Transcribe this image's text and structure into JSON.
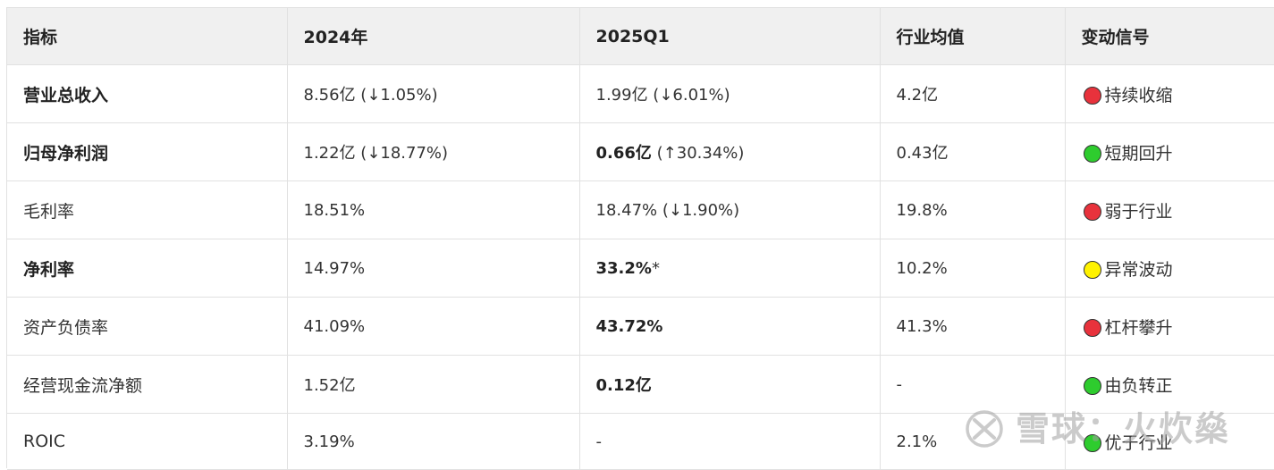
{
  "colors": {
    "header_bg": "#f0f0f0",
    "border": "#e1e1e1",
    "red": "#e8323c",
    "green": "#2ecc2e",
    "yellow": "#fff200"
  },
  "table": {
    "headers": [
      "指标",
      "2024年",
      "2025Q1",
      "行业均值",
      "变动信号"
    ],
    "rows": [
      {
        "metric": "营业总收入",
        "metric_bold": true,
        "y2024": "8.56亿 (↓1.05%)",
        "q1_main": "1.99亿",
        "q1_extra": " (↓6.01%)",
        "q1_bold": false,
        "industry": "4.2亿",
        "signal_color": "red",
        "signal": "持续收缩"
      },
      {
        "metric": "归母净利润",
        "metric_bold": true,
        "y2024": "1.22亿 (↓18.77%)",
        "q1_main": "0.66亿",
        "q1_extra": " (↑30.34%)",
        "q1_bold": true,
        "industry": "0.43亿",
        "signal_color": "green",
        "signal": "短期回升"
      },
      {
        "metric": "毛利率",
        "metric_bold": false,
        "y2024": "18.51%",
        "q1_main": "18.47%",
        "q1_extra": " (↓1.90%)",
        "q1_bold": false,
        "industry": "19.8%",
        "signal_color": "red",
        "signal": "弱于行业"
      },
      {
        "metric": "净利率",
        "metric_bold": true,
        "y2024": "14.97%",
        "q1_main": "33.2%",
        "q1_extra": "*",
        "q1_bold": true,
        "industry": "10.2%",
        "signal_color": "yellow",
        "signal": "异常波动"
      },
      {
        "metric": "资产负债率",
        "metric_bold": false,
        "y2024": "41.09%",
        "q1_main": "43.72%",
        "q1_extra": "",
        "q1_bold": true,
        "industry": "41.3%",
        "signal_color": "red",
        "signal": "杠杆攀升"
      },
      {
        "metric": "经营现金流净额",
        "metric_bold": false,
        "y2024": "1.52亿",
        "q1_main": "0.12亿",
        "q1_extra": "",
        "q1_bold": true,
        "industry": "-",
        "signal_color": "green",
        "signal": "由负转正"
      },
      {
        "metric": "ROIC",
        "metric_bold": false,
        "y2024": "3.19%",
        "q1_main": "-",
        "q1_extra": "",
        "q1_bold": false,
        "industry": "2.1%",
        "signal_color": "green",
        "signal": "优于行业"
      }
    ]
  },
  "watermark": {
    "icon": "xueqiu-logo-icon",
    "text": "雪球：火炊燊"
  }
}
